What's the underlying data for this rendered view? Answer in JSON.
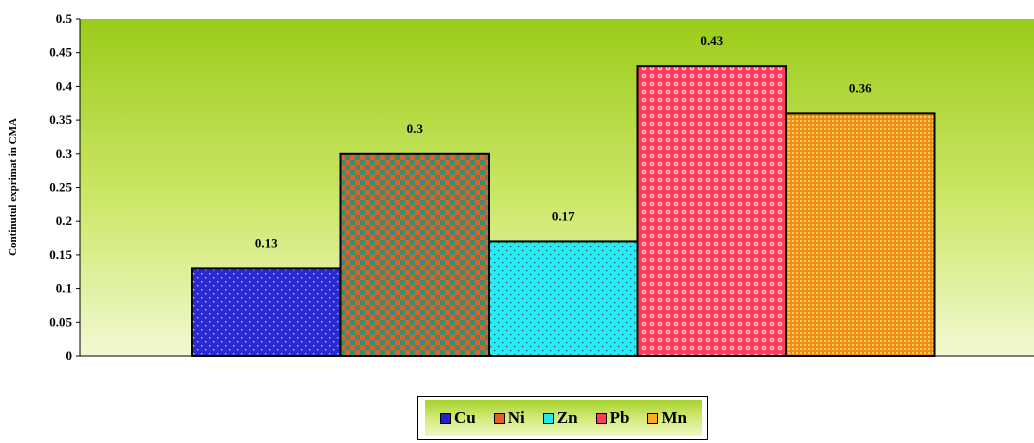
{
  "chart_data": {
    "type": "bar",
    "categories": [
      "Cu",
      "Ni",
      "Zn",
      "Pb",
      "Mn"
    ],
    "values": [
      0.13,
      0.3,
      0.17,
      0.43,
      0.36
    ],
    "data_labels": [
      "0.13",
      "0.3",
      "0.17",
      "0.43",
      "0.36"
    ],
    "ylabel": "Continutul exprimat in CMA",
    "ylim": [
      0,
      0.5
    ],
    "yticks": [
      "0",
      "0.05",
      "0.1",
      "0.15",
      "0.2",
      "0.25",
      "0.3",
      "0.35",
      "0.4",
      "0.45",
      "0.5"
    ],
    "colors": [
      "#2222cc",
      "#e0602a",
      "#22e8ee",
      "#ff3a5a",
      "#ffaa22"
    ],
    "legend": [
      "Cu",
      "Ni",
      "Zn",
      "Pb",
      "Mn"
    ],
    "legend_position": "bottom",
    "plot_background": "green gradient",
    "grid": false
  }
}
